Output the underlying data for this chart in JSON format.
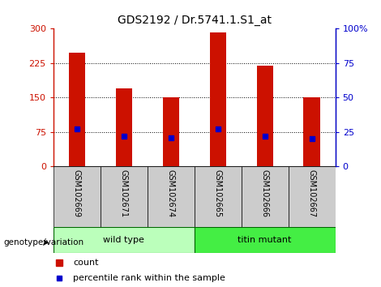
{
  "title": "GDS2192 / Dr.5741.1.S1_at",
  "samples": [
    "GSM102669",
    "GSM102671",
    "GSM102674",
    "GSM102665",
    "GSM102666",
    "GSM102667"
  ],
  "counts": [
    248,
    170,
    150,
    291,
    220,
    151
  ],
  "percentile_ranks": [
    27,
    22,
    21,
    27,
    22,
    20
  ],
  "ylim_left": [
    0,
    300
  ],
  "ylim_right": [
    0,
    100
  ],
  "yticks_left": [
    0,
    75,
    150,
    225,
    300
  ],
  "yticks_right": [
    0,
    25,
    50,
    75,
    100
  ],
  "bar_color": "#cc1100",
  "dot_color": "#0000cc",
  "bar_width": 0.35,
  "groups": [
    {
      "label": "wild type",
      "indices": [
        0,
        1,
        2
      ],
      "color": "#bbffbb"
    },
    {
      "label": "titin mutant",
      "indices": [
        3,
        4,
        5
      ],
      "color": "#44ee44"
    }
  ],
  "group_row_label": "genotype/variation",
  "tick_bg_color": "#cccccc",
  "legend_count_label": "count",
  "legend_pct_label": "percentile rank within the sample"
}
